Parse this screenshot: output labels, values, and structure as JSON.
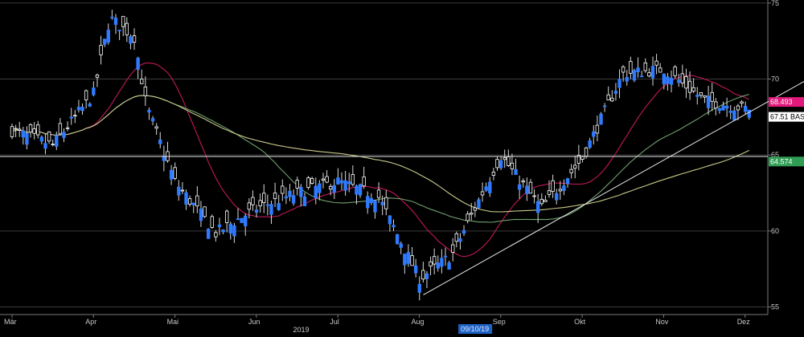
{
  "chart_data": {
    "type": "candlestick",
    "y_ticks": [
      "75",
      "70",
      "65",
      "60",
      "55"
    ],
    "y_range": [
      54.5,
      75.2
    ],
    "x_ticks": [
      "Mär",
      "Apr",
      "Mai",
      "Jun",
      "Jul",
      "Aug",
      "Sep",
      "Okt",
      "Nov",
      "Dez"
    ],
    "year_label": "2019",
    "cursor_date": "09/10/19",
    "price_tags": [
      {
        "label": "68.493",
        "value": 68.49,
        "bg": "#e0197a",
        "fg": "#ffffff"
      },
      {
        "label": "67.51 BAS",
        "value": 67.51,
        "bg": "#ffffff",
        "fg": "#000000"
      },
      {
        "label": "64.574",
        "value": 64.57,
        "bg": "#2f9e54",
        "fg": "#ffffff"
      }
    ],
    "horizontal_line": 64.9,
    "trendline": {
      "from": {
        "month_index": 5.05,
        "value": 55.8
      },
      "to": {
        "month_index": 9.35,
        "value": 69.5
      }
    },
    "candles_sample": [
      {
        "month_index": 0.0,
        "open": 66.2,
        "close": 67.0
      },
      {
        "month_index": 0.5,
        "open": 66.0,
        "close": 65.3
      },
      {
        "month_index": 1.0,
        "open": 68.5,
        "close": 69.5
      },
      {
        "month_index": 1.2,
        "open": 73.5,
        "close": 74.5
      },
      {
        "month_index": 1.5,
        "open": 73.0,
        "close": 72.6
      },
      {
        "month_index": 1.65,
        "open": 69.4,
        "close": 67.0
      },
      {
        "month_index": 2.0,
        "open": 64.0,
        "close": 62.5
      },
      {
        "month_index": 2.5,
        "open": 60.5,
        "close": 59.2
      },
      {
        "month_index": 3.0,
        "open": 61.0,
        "close": 62.0
      },
      {
        "month_index": 3.5,
        "open": 63.0,
        "close": 62.0
      },
      {
        "month_index": 4.0,
        "open": 64.0,
        "close": 62.5
      },
      {
        "month_index": 4.5,
        "open": 63.5,
        "close": 61.0
      },
      {
        "month_index": 5.0,
        "open": 57.2,
        "close": 56.5
      },
      {
        "month_index": 5.4,
        "open": 58.0,
        "close": 58.8
      },
      {
        "month_index": 6.0,
        "open": 64.5,
        "close": 65.4
      },
      {
        "month_index": 6.5,
        "open": 62.0,
        "close": 61.0
      },
      {
        "month_index": 7.0,
        "open": 64.0,
        "close": 65.5
      },
      {
        "month_index": 7.5,
        "open": 70.0,
        "close": 70.7
      },
      {
        "month_index": 8.0,
        "open": 71.0,
        "close": 70.3
      },
      {
        "month_index": 8.5,
        "open": 69.0,
        "close": 68.2
      },
      {
        "month_index": 9.0,
        "open": 68.6,
        "close": 67.5
      }
    ]
  }
}
